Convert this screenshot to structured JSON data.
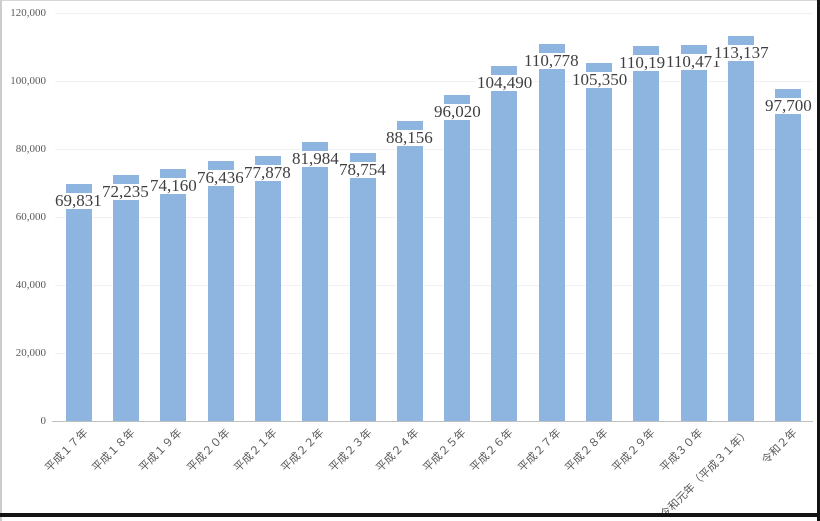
{
  "chart_data": {
    "type": "bar",
    "title": "",
    "categories": [
      "平成１７年",
      "平成１８年",
      "平成１９年",
      "平成２０年",
      "平成２１年",
      "平成２２年",
      "平成２３年",
      "平成２４年",
      "平成２５年",
      "平成２６年",
      "平成２７年",
      "平成２８年",
      "平成２９年",
      "平成３０年",
      "令和元年（平成３１年）",
      "令和２年"
    ],
    "values": [
      69831,
      72235,
      74160,
      76436,
      77878,
      81984,
      78754,
      88156,
      96020,
      104490,
      110778,
      105350,
      110191,
      110471,
      113137,
      97700
    ],
    "value_labels": [
      "69,831",
      "72,235",
      "74,160",
      "76,436",
      "77,878",
      "81,984",
      "78,754",
      "88,156",
      "96,020",
      "104,490",
      "110,778",
      "105,350",
      "110,191",
      "110,471",
      "113,137",
      "97,700"
    ],
    "xlabel": "",
    "ylabel": "",
    "y_axis": {
      "min": 0,
      "max": 120000,
      "tick_values": [
        0,
        20000,
        40000,
        60000,
        80000,
        100000,
        120000
      ],
      "tick_labels": [
        "0",
        "20,000",
        "40,000",
        "60,000",
        "80,000",
        "100,000",
        "120,000"
      ]
    },
    "grid": true,
    "legend": false,
    "colors": {
      "bar": "#8DB5E0",
      "data_label_text": "#3F3F3F",
      "axis_text": "#595959",
      "gridline": "#F1F1F1",
      "axis_line": "#BFBFBF",
      "background": "#FFFFFF"
    }
  }
}
